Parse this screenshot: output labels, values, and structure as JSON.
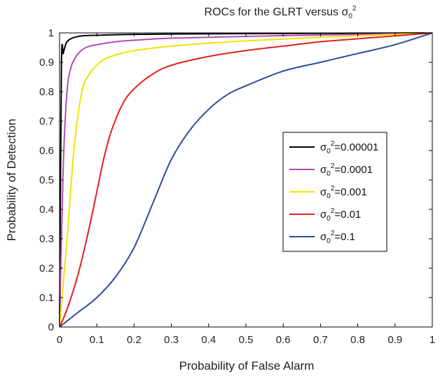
{
  "chart_data": {
    "type": "line",
    "title": {
      "text": "ROCs for the GLRT versus σ",
      "sub": "0",
      "sup": "2"
    },
    "xlabel": "Probability of False Alarm",
    "ylabel": "Probability of Detection",
    "xlim": [
      0,
      1
    ],
    "ylim": [
      0,
      1
    ],
    "xticks": [
      0,
      0.1,
      0.2,
      0.3,
      0.4,
      0.5,
      0.6,
      0.7,
      0.8,
      0.9,
      1
    ],
    "yticks": [
      0,
      0.1,
      0.2,
      0.3,
      0.4,
      0.5,
      0.6,
      0.7,
      0.8,
      0.9,
      1
    ],
    "xtick_labels": [
      "0",
      "0.1",
      "0.2",
      "0.3",
      "0.4",
      "0.5",
      "0.6",
      "0.7",
      "0.8",
      "0.9",
      "1"
    ],
    "ytick_labels": [
      "0",
      "0.1",
      "0.2",
      "0.3",
      "0.4",
      "0.5",
      "0.6",
      "0.7",
      "0.8",
      "0.9",
      "1"
    ],
    "grid": false,
    "legend_position": "right",
    "series": [
      {
        "name": "σ0²=0.00001",
        "legend": {
          "base": "σ",
          "sub": "0",
          "sup": "2",
          "value": "=0.00001"
        },
        "color": "#000000",
        "x": [
          0,
          0.005,
          0.01,
          0.015,
          0.02,
          0.03,
          0.04,
          0.06,
          0.1,
          0.2,
          0.4,
          0.6,
          0.8,
          1
        ],
        "y": [
          0,
          0.88,
          0.93,
          0.955,
          0.97,
          0.98,
          0.985,
          0.99,
          0.992,
          0.995,
          0.997,
          0.998,
          0.999,
          1
        ]
      },
      {
        "name": "σ0²=0.0001",
        "legend": {
          "base": "σ",
          "sub": "0",
          "sup": "2",
          "value": "=0.0001"
        },
        "color": "#b54bb5",
        "x": [
          0,
          0.01,
          0.02,
          0.03,
          0.04,
          0.05,
          0.07,
          0.1,
          0.15,
          0.2,
          0.3,
          0.5,
          0.7,
          0.9,
          1
        ],
        "y": [
          0,
          0.55,
          0.8,
          0.88,
          0.91,
          0.93,
          0.95,
          0.96,
          0.97,
          0.975,
          0.982,
          0.988,
          0.993,
          0.997,
          1
        ]
      },
      {
        "name": "σ0²=0.001",
        "legend": {
          "base": "σ",
          "sub": "0",
          "sup": "2",
          "value": "=0.001"
        },
        "color": "#f2e200",
        "x": [
          0,
          0.02,
          0.04,
          0.06,
          0.08,
          0.1,
          0.12,
          0.15,
          0.2,
          0.3,
          0.4,
          0.5,
          0.7,
          0.9,
          1
        ],
        "y": [
          0,
          0.3,
          0.62,
          0.8,
          0.86,
          0.89,
          0.91,
          0.925,
          0.94,
          0.955,
          0.965,
          0.973,
          0.985,
          0.995,
          1
        ]
      },
      {
        "name": "σ0²=0.01",
        "legend": {
          "base": "σ",
          "sub": "0",
          "sup": "2",
          "value": "=0.01"
        },
        "color": "#e0201b",
        "x": [
          0,
          0.02,
          0.05,
          0.08,
          0.1,
          0.12,
          0.14,
          0.17,
          0.2,
          0.25,
          0.3,
          0.4,
          0.5,
          0.6,
          0.7,
          0.8,
          0.9,
          1
        ],
        "y": [
          0,
          0.06,
          0.18,
          0.34,
          0.46,
          0.58,
          0.67,
          0.76,
          0.81,
          0.86,
          0.89,
          0.92,
          0.94,
          0.955,
          0.97,
          0.98,
          0.99,
          1
        ]
      },
      {
        "name": "σ0²=0.1",
        "legend": {
          "base": "σ",
          "sub": "0",
          "sup": "2",
          "value": "=0.1"
        },
        "color": "#2e4a9e",
        "x": [
          0,
          0.05,
          0.1,
          0.15,
          0.2,
          0.25,
          0.3,
          0.35,
          0.4,
          0.45,
          0.5,
          0.6,
          0.7,
          0.8,
          0.9,
          1
        ],
        "y": [
          0,
          0.05,
          0.1,
          0.17,
          0.27,
          0.42,
          0.57,
          0.67,
          0.74,
          0.79,
          0.82,
          0.87,
          0.9,
          0.93,
          0.96,
          1
        ]
      }
    ]
  }
}
